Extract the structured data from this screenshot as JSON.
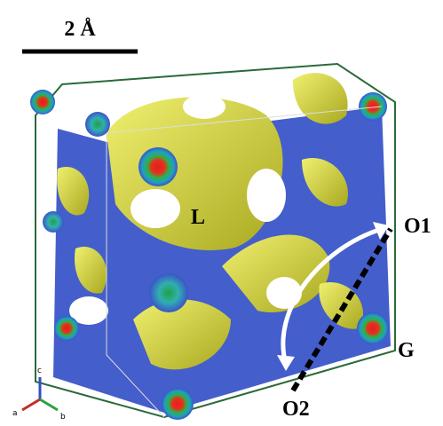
{
  "scale_bar": {
    "label": "2 Å"
  },
  "annotations": {
    "cavity": "L",
    "site_1": "O1",
    "site_2": "O2",
    "gate": "G"
  },
  "axes_triad": {
    "top": "c",
    "left": "a",
    "right": "b"
  }
}
